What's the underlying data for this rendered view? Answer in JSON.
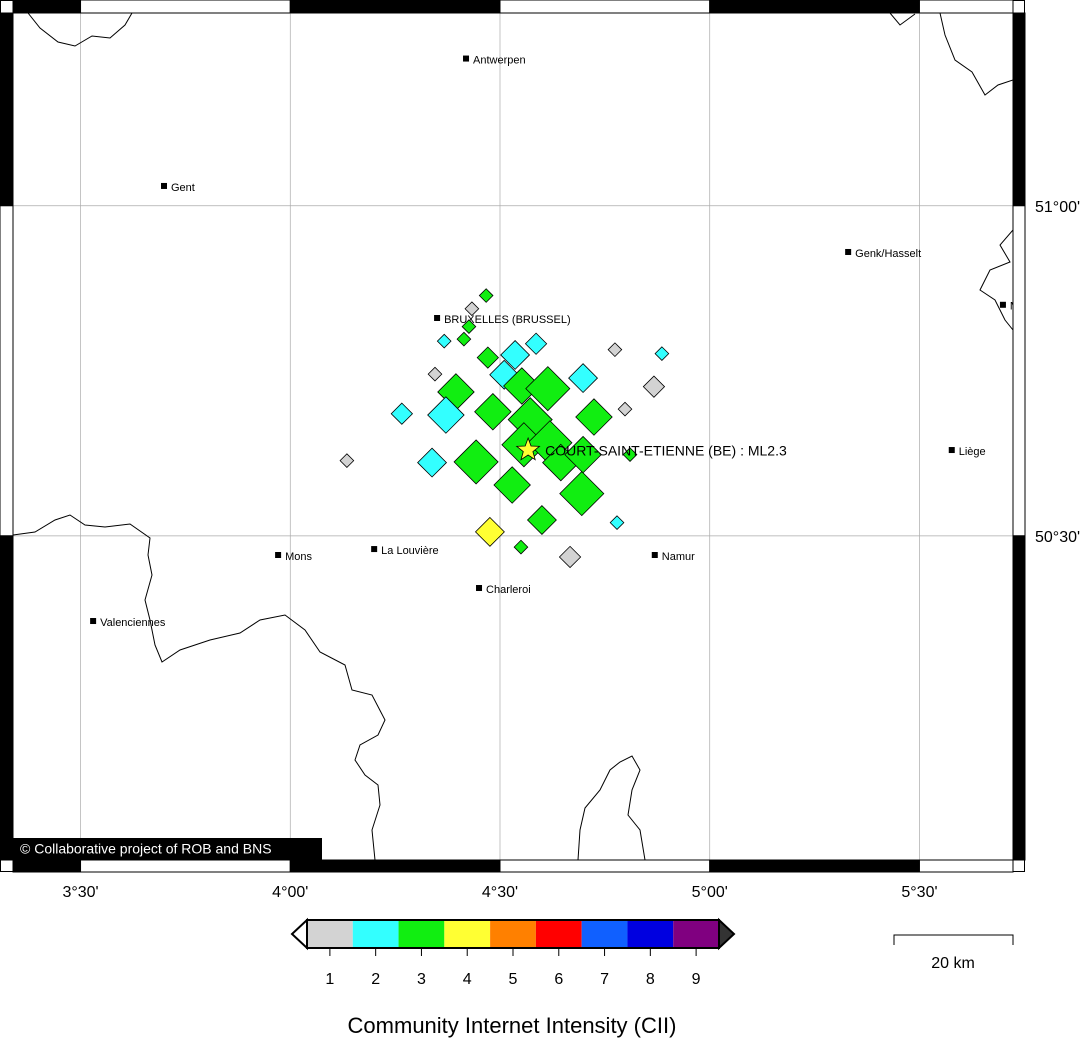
{
  "map": {
    "lonlim": [
      3.339,
      5.723
    ],
    "latlim": [
      50.009,
      51.292
    ],
    "lonticks": [
      {
        "value": 3.5,
        "label": "3°30'"
      },
      {
        "value": 4.0,
        "label": "4°00'"
      },
      {
        "value": 4.5,
        "label": "4°30'"
      },
      {
        "value": 5.0,
        "label": "5°00'"
      },
      {
        "value": 5.5,
        "label": "5°30'"
      }
    ],
    "latticks": [
      {
        "value": 50.5,
        "label": "50°30'"
      },
      {
        "value": 51.0,
        "label": "51°00'"
      }
    ],
    "grid": true,
    "cities": [
      {
        "name": "Antwerpen",
        "lon": 4.419,
        "lat": 51.223
      },
      {
        "name": "Gent",
        "lon": 3.699,
        "lat": 51.03
      },
      {
        "name": "Genk/Hasselt",
        "lon": 5.33,
        "lat": 50.93
      },
      {
        "name": "Maastricht",
        "lon": 5.699,
        "lat": 50.85
      },
      {
        "name": "BRUXELLES (BRUSSEL)",
        "lon": 4.35,
        "lat": 50.83
      },
      {
        "name": "Liège",
        "lon": 5.577,
        "lat": 50.63
      },
      {
        "name": "Mons",
        "lon": 3.971,
        "lat": 50.471
      },
      {
        "name": "La Louvière",
        "lon": 4.2,
        "lat": 50.48
      },
      {
        "name": "Namur",
        "lon": 4.869,
        "lat": 50.471
      },
      {
        "name": "Charleroi",
        "lon": 4.45,
        "lat": 50.421
      },
      {
        "name": "Valenciennes",
        "lon": 3.53,
        "lat": 50.371
      }
    ],
    "event": {
      "label": "COURT-SAINT-ETIENNE (BE) : ML2.3",
      "lon": 4.567,
      "lat": 50.63,
      "color": "#ffff33"
    },
    "reports": [
      {
        "lon": 4.467,
        "lat": 50.864,
        "cii": 3,
        "size": 1
      },
      {
        "lon": 4.433,
        "lat": 50.844,
        "cii": 1,
        "size": 1
      },
      {
        "lon": 4.426,
        "lat": 50.817,
        "cii": 3,
        "size": 1
      },
      {
        "lon": 4.367,
        "lat": 50.795,
        "cii": 2,
        "size": 1
      },
      {
        "lon": 4.414,
        "lat": 50.798,
        "cii": 3,
        "size": 1
      },
      {
        "lon": 4.471,
        "lat": 50.77,
        "cii": 3,
        "size": 2
      },
      {
        "lon": 4.536,
        "lat": 50.774,
        "cii": 2,
        "size": 3
      },
      {
        "lon": 4.586,
        "lat": 50.791,
        "cii": 2,
        "size": 2
      },
      {
        "lon": 4.774,
        "lat": 50.782,
        "cii": 1,
        "size": 1
      },
      {
        "lon": 4.886,
        "lat": 50.776,
        "cii": 2,
        "size": 1
      },
      {
        "lon": 4.345,
        "lat": 50.745,
        "cii": 1,
        "size": 1
      },
      {
        "lon": 4.51,
        "lat": 50.744,
        "cii": 2,
        "size": 3
      },
      {
        "lon": 4.395,
        "lat": 50.718,
        "cii": 3,
        "size": 4
      },
      {
        "lon": 4.552,
        "lat": 50.727,
        "cii": 3,
        "size": 4
      },
      {
        "lon": 4.614,
        "lat": 50.723,
        "cii": 3,
        "size": 5
      },
      {
        "lon": 4.698,
        "lat": 50.739,
        "cii": 2,
        "size": 3
      },
      {
        "lon": 4.867,
        "lat": 50.726,
        "cii": 1,
        "size": 2
      },
      {
        "lon": 4.798,
        "lat": 50.692,
        "cii": 1,
        "size": 1
      },
      {
        "lon": 4.266,
        "lat": 50.685,
        "cii": 2,
        "size": 2
      },
      {
        "lon": 4.371,
        "lat": 50.683,
        "cii": 2,
        "size": 4
      },
      {
        "lon": 4.483,
        "lat": 50.688,
        "cii": 3,
        "size": 4
      },
      {
        "lon": 4.572,
        "lat": 50.676,
        "cii": 3,
        "size": 5
      },
      {
        "lon": 4.724,
        "lat": 50.68,
        "cii": 3,
        "size": 4
      },
      {
        "lon": 4.557,
        "lat": 50.638,
        "cii": 3,
        "size": 5
      },
      {
        "lon": 4.619,
        "lat": 50.641,
        "cii": 3,
        "size": 5
      },
      {
        "lon": 4.645,
        "lat": 50.611,
        "cii": 3,
        "size": 4
      },
      {
        "lon": 4.698,
        "lat": 50.623,
        "cii": 3,
        "size": 4
      },
      {
        "lon": 4.81,
        "lat": 50.623,
        "cii": 3,
        "size": 1
      },
      {
        "lon": 4.135,
        "lat": 50.614,
        "cii": 1,
        "size": 1
      },
      {
        "lon": 4.338,
        "lat": 50.611,
        "cii": 2,
        "size": 3
      },
      {
        "lon": 4.443,
        "lat": 50.612,
        "cii": 3,
        "size": 5
      },
      {
        "lon": 4.529,
        "lat": 50.577,
        "cii": 3,
        "size": 4
      },
      {
        "lon": 4.695,
        "lat": 50.564,
        "cii": 3,
        "size": 5
      },
      {
        "lon": 4.6,
        "lat": 50.524,
        "cii": 3,
        "size": 3
      },
      {
        "lon": 4.779,
        "lat": 50.52,
        "cii": 2,
        "size": 1
      },
      {
        "lon": 4.476,
        "lat": 50.506,
        "cii": 4,
        "size": 3
      },
      {
        "lon": 4.55,
        "lat": 50.483,
        "cii": 3,
        "size": 1
      },
      {
        "lon": 4.667,
        "lat": 50.468,
        "cii": 1,
        "size": 2
      }
    ],
    "colorbar": {
      "title": "Community Internet Intensity (CII)",
      "levels": [
        1,
        2,
        3,
        4,
        5,
        6,
        7,
        8,
        9
      ],
      "colors": [
        "#d3d3d3",
        "#33ffff",
        "#11ee11",
        "#ffff33",
        "#ff8000",
        "#ff0000",
        "#1060ff",
        "#0000e0",
        "#800080"
      ]
    },
    "scale_label": "20 km",
    "copyright": "© Collaborative project of ROB and BNS"
  }
}
